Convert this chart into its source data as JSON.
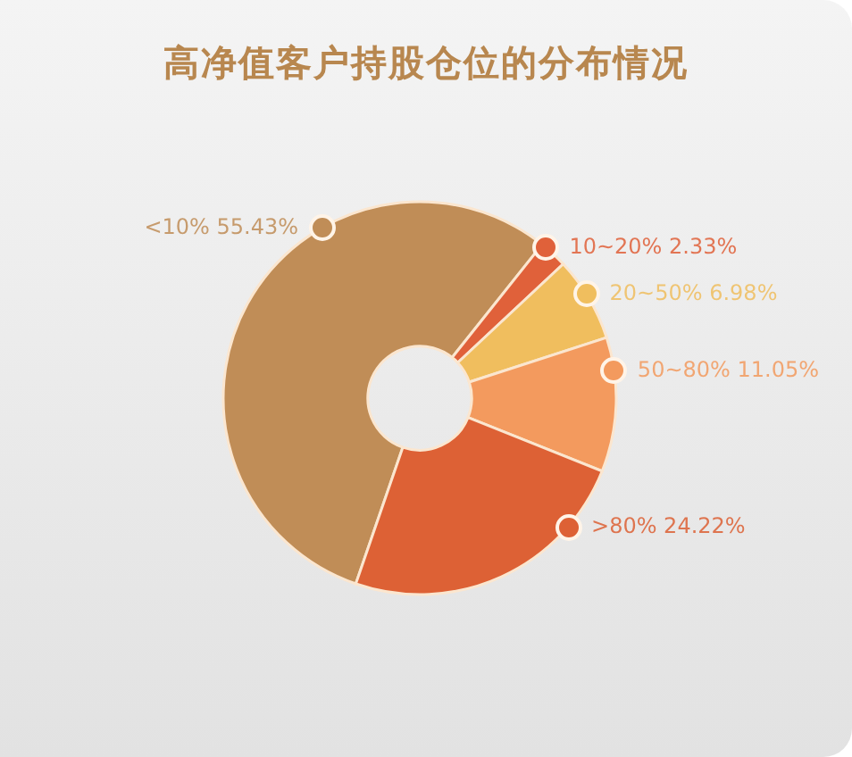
{
  "chart_data": {
    "type": "donut",
    "title": "高净值客户持股仓位的分布情况",
    "categories": [
      "<10%",
      "10~20%",
      "20~50%",
      "50~80%",
      ">80%"
    ],
    "values": [
      55.43,
      2.33,
      6.98,
      11.05,
      24.22
    ],
    "value_labels": [
      "55.43%",
      "2.33%",
      "6.98%",
      "11.05%",
      "24.22%"
    ],
    "colors": [
      "#c08d57",
      "#e0613a",
      "#f0be5e",
      "#f39a5e",
      "#dd6135"
    ],
    "legend": "right"
  }
}
